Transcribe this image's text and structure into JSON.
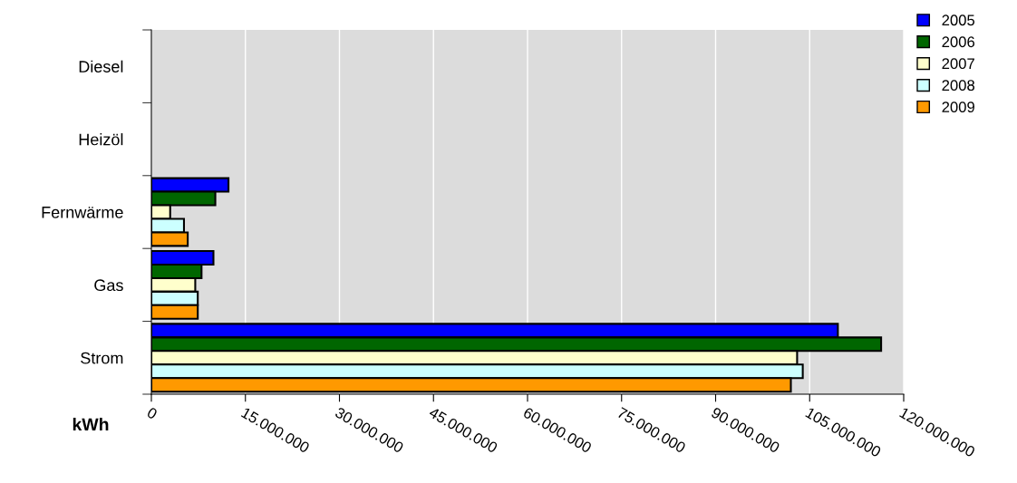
{
  "chart_data": {
    "type": "bar",
    "orientation": "horizontal",
    "xlabel": "kWh",
    "categories": [
      "Diesel",
      "Heizöl",
      "Fernwärme",
      "Gas",
      "Strom"
    ],
    "series": [
      {
        "name": "2005",
        "color": "#0000ff",
        "values": [
          null,
          null,
          12300000.0,
          9900000.0,
          109500000.0
        ]
      },
      {
        "name": "2006",
        "color": "#006600",
        "values": [
          null,
          null,
          10200000.0,
          8000000.0,
          116400000.0
        ]
      },
      {
        "name": "2007",
        "color": "#ffffcc",
        "values": [
          null,
          null,
          3000000.0,
          7000000.0,
          103000000.0
        ]
      },
      {
        "name": "2008",
        "color": "#ccffff",
        "values": [
          null,
          null,
          5200000.0,
          7400000.0,
          103900000.0
        ]
      },
      {
        "name": "2009",
        "color": "#ff9900",
        "values": [
          null,
          null,
          5800000.0,
          7400000.0,
          102000000.0
        ]
      }
    ],
    "xlim": [
      0,
      120000000
    ],
    "xticks": [
      {
        "value": 0,
        "label": "0"
      },
      {
        "value": 15000000,
        "label": "15.000.000"
      },
      {
        "value": 30000000,
        "label": "30.000.000"
      },
      {
        "value": 45000000,
        "label": "45.000.000"
      },
      {
        "value": 60000000,
        "label": "60.000.000"
      },
      {
        "value": 75000000,
        "label": "75.000.000"
      },
      {
        "value": 90000000,
        "label": "90.000.000"
      },
      {
        "value": 105000000,
        "label": "105.000.000"
      },
      {
        "value": 120000000,
        "label": "120.000.000"
      }
    ],
    "grid": "x",
    "legend": "top right"
  }
}
